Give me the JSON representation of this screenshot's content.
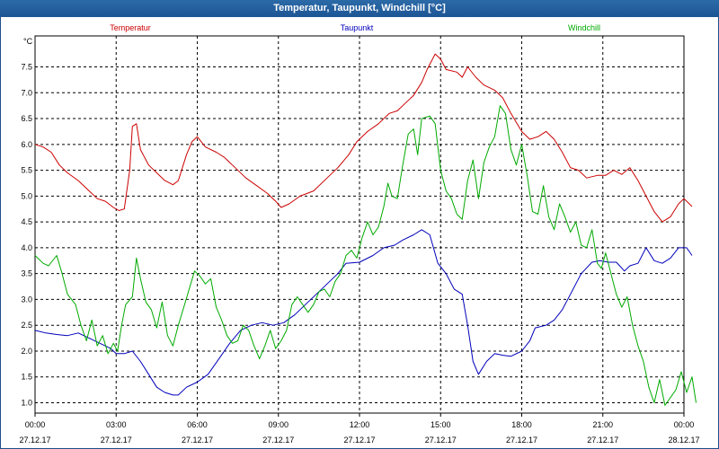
{
  "window": {
    "title": "Temperatur, Taupunkt, Windchill [°C]"
  },
  "colors": {
    "temperature": "#cc0000",
    "dewpoint": "#0000bb",
    "windchill": "#00aa00",
    "grid": "#000000",
    "titlebar": "#1d5594"
  },
  "chart_data": {
    "type": "line",
    "title": "Temperatur, Taupunkt, Windchill [°C]",
    "ylabel": "°C",
    "xlabel": "",
    "xlim": [
      0,
      24
    ],
    "ylim": [
      0.8,
      8.1
    ],
    "grid": true,
    "legend": "top",
    "x_ticks": [
      {
        "x": 0,
        "time": "00:00",
        "date": "27.12.17"
      },
      {
        "x": 3,
        "time": "03:00",
        "date": "27.12.17"
      },
      {
        "x": 6,
        "time": "06:00",
        "date": "27.12.17"
      },
      {
        "x": 9,
        "time": "09:00",
        "date": "27.12.17"
      },
      {
        "x": 12,
        "time": "12:00",
        "date": "27.12.17"
      },
      {
        "x": 15,
        "time": "15:00",
        "date": "27.12.17"
      },
      {
        "x": 18,
        "time": "18:00",
        "date": "27.12.17"
      },
      {
        "x": 21,
        "time": "21:00",
        "date": "27.12.17"
      },
      {
        "x": 24,
        "time": "00:00",
        "date": "28.12.17"
      }
    ],
    "y_ticks": [
      "1.0",
      "1.5",
      "2.0",
      "2.5",
      "3.0",
      "3.5",
      "4.0",
      "4.5",
      "5.0",
      "5.5",
      "6.0",
      "6.5",
      "7.0",
      "7.5"
    ],
    "series": [
      {
        "name": "Temperatur",
        "color": "#cc0000",
        "points": [
          [
            0,
            6.0
          ],
          [
            0.3,
            5.95
          ],
          [
            0.6,
            5.85
          ],
          [
            0.9,
            5.6
          ],
          [
            1.2,
            5.45
          ],
          [
            1.6,
            5.3
          ],
          [
            2.0,
            5.1
          ],
          [
            2.3,
            4.95
          ],
          [
            2.6,
            4.9
          ],
          [
            2.9,
            4.78
          ],
          [
            3.1,
            4.72
          ],
          [
            3.3,
            4.75
          ],
          [
            3.5,
            5.5
          ],
          [
            3.6,
            6.35
          ],
          [
            3.75,
            6.4
          ],
          [
            3.9,
            5.9
          ],
          [
            4.2,
            5.6
          ],
          [
            4.5,
            5.45
          ],
          [
            4.8,
            5.3
          ],
          [
            5.1,
            5.22
          ],
          [
            5.3,
            5.3
          ],
          [
            5.6,
            5.8
          ],
          [
            5.8,
            6.05
          ],
          [
            6.0,
            6.15
          ],
          [
            6.3,
            5.95
          ],
          [
            6.7,
            5.85
          ],
          [
            7.0,
            5.75
          ],
          [
            7.4,
            5.55
          ],
          [
            7.8,
            5.35
          ],
          [
            8.2,
            5.2
          ],
          [
            8.6,
            5.05
          ],
          [
            8.9,
            4.9
          ],
          [
            9.1,
            4.78
          ],
          [
            9.4,
            4.85
          ],
          [
            9.8,
            5.0
          ],
          [
            10.3,
            5.1
          ],
          [
            10.8,
            5.35
          ],
          [
            11.2,
            5.55
          ],
          [
            11.6,
            5.8
          ],
          [
            11.9,
            6.05
          ],
          [
            12.3,
            6.25
          ],
          [
            12.7,
            6.4
          ],
          [
            13.1,
            6.6
          ],
          [
            13.4,
            6.65
          ],
          [
            13.7,
            6.8
          ],
          [
            14.0,
            6.95
          ],
          [
            14.3,
            7.2
          ],
          [
            14.5,
            7.45
          ],
          [
            14.8,
            7.75
          ],
          [
            15.0,
            7.65
          ],
          [
            15.2,
            7.45
          ],
          [
            15.6,
            7.4
          ],
          [
            15.8,
            7.3
          ],
          [
            16.0,
            7.5
          ],
          [
            16.3,
            7.3
          ],
          [
            16.6,
            7.15
          ],
          [
            17.0,
            7.05
          ],
          [
            17.3,
            6.9
          ],
          [
            17.6,
            6.6
          ],
          [
            18.0,
            6.25
          ],
          [
            18.3,
            6.1
          ],
          [
            18.6,
            6.15
          ],
          [
            18.9,
            6.25
          ],
          [
            19.2,
            6.1
          ],
          [
            19.5,
            5.85
          ],
          [
            19.8,
            5.55
          ],
          [
            20.1,
            5.5
          ],
          [
            20.4,
            5.35
          ],
          [
            20.8,
            5.4
          ],
          [
            21.1,
            5.4
          ],
          [
            21.4,
            5.5
          ],
          [
            21.7,
            5.42
          ],
          [
            22.0,
            5.55
          ],
          [
            22.3,
            5.3
          ],
          [
            22.6,
            5.0
          ],
          [
            22.9,
            4.7
          ],
          [
            23.2,
            4.5
          ],
          [
            23.5,
            4.6
          ],
          [
            23.8,
            4.85
          ],
          [
            24.0,
            4.95
          ],
          [
            24.3,
            4.8
          ]
        ]
      },
      {
        "name": "Taupunkt",
        "color": "#0000bb",
        "points": [
          [
            0,
            2.4
          ],
          [
            0.4,
            2.35
          ],
          [
            0.8,
            2.32
          ],
          [
            1.2,
            2.3
          ],
          [
            1.6,
            2.35
          ],
          [
            2.0,
            2.25
          ],
          [
            2.4,
            2.15
          ],
          [
            2.8,
            2.05
          ],
          [
            3.0,
            1.95
          ],
          [
            3.3,
            1.95
          ],
          [
            3.6,
            2.0
          ],
          [
            3.9,
            1.8
          ],
          [
            4.2,
            1.55
          ],
          [
            4.5,
            1.3
          ],
          [
            4.8,
            1.2
          ],
          [
            5.1,
            1.15
          ],
          [
            5.3,
            1.15
          ],
          [
            5.6,
            1.3
          ],
          [
            6.0,
            1.4
          ],
          [
            6.4,
            1.55
          ],
          [
            6.8,
            1.85
          ],
          [
            7.2,
            2.15
          ],
          [
            7.6,
            2.4
          ],
          [
            8.0,
            2.5
          ],
          [
            8.4,
            2.55
          ],
          [
            8.8,
            2.5
          ],
          [
            9.2,
            2.55
          ],
          [
            9.6,
            2.7
          ],
          [
            10.0,
            2.9
          ],
          [
            10.4,
            3.1
          ],
          [
            10.8,
            3.3
          ],
          [
            11.2,
            3.5
          ],
          [
            11.5,
            3.7
          ],
          [
            12.0,
            3.72
          ],
          [
            12.5,
            3.85
          ],
          [
            12.9,
            4.0
          ],
          [
            13.3,
            4.05
          ],
          [
            13.6,
            4.15
          ],
          [
            14.0,
            4.25
          ],
          [
            14.3,
            4.35
          ],
          [
            14.6,
            4.25
          ],
          [
            14.9,
            3.7
          ],
          [
            15.2,
            3.5
          ],
          [
            15.5,
            3.2
          ],
          [
            15.8,
            3.1
          ],
          [
            16.0,
            2.5
          ],
          [
            16.2,
            1.8
          ],
          [
            16.4,
            1.55
          ],
          [
            16.7,
            1.8
          ],
          [
            17.0,
            1.95
          ],
          [
            17.3,
            1.92
          ],
          [
            17.6,
            1.9
          ],
          [
            18.0,
            2.0
          ],
          [
            18.3,
            2.2
          ],
          [
            18.5,
            2.45
          ],
          [
            18.9,
            2.5
          ],
          [
            19.2,
            2.6
          ],
          [
            19.5,
            2.8
          ],
          [
            19.8,
            3.1
          ],
          [
            20.2,
            3.5
          ],
          [
            20.6,
            3.72
          ],
          [
            20.9,
            3.75
          ],
          [
            21.2,
            3.72
          ],
          [
            21.5,
            3.72
          ],
          [
            21.8,
            3.55
          ],
          [
            22.0,
            3.65
          ],
          [
            22.3,
            3.7
          ],
          [
            22.6,
            4.0
          ],
          [
            22.9,
            3.75
          ],
          [
            23.2,
            3.7
          ],
          [
            23.5,
            3.8
          ],
          [
            23.8,
            4.0
          ],
          [
            24.1,
            4.0
          ],
          [
            24.3,
            3.85
          ]
        ]
      },
      {
        "name": "Windchill",
        "color": "#00aa00",
        "points": [
          [
            0,
            3.85
          ],
          [
            0.3,
            3.7
          ],
          [
            0.5,
            3.65
          ],
          [
            0.8,
            3.85
          ],
          [
            1.0,
            3.5
          ],
          [
            1.2,
            3.1
          ],
          [
            1.5,
            2.9
          ],
          [
            1.7,
            2.5
          ],
          [
            1.9,
            2.2
          ],
          [
            2.1,
            2.6
          ],
          [
            2.3,
            2.1
          ],
          [
            2.5,
            2.3
          ],
          [
            2.7,
            1.95
          ],
          [
            2.9,
            2.15
          ],
          [
            3.05,
            2.0
          ],
          [
            3.2,
            2.5
          ],
          [
            3.35,
            2.9
          ],
          [
            3.6,
            3.05
          ],
          [
            3.75,
            3.8
          ],
          [
            3.9,
            3.4
          ],
          [
            4.1,
            2.95
          ],
          [
            4.3,
            2.8
          ],
          [
            4.5,
            2.45
          ],
          [
            4.7,
            2.95
          ],
          [
            4.9,
            2.3
          ],
          [
            5.1,
            2.1
          ],
          [
            5.3,
            2.5
          ],
          [
            5.5,
            2.85
          ],
          [
            5.7,
            3.2
          ],
          [
            5.9,
            3.55
          ],
          [
            6.1,
            3.45
          ],
          [
            6.3,
            3.3
          ],
          [
            6.5,
            3.4
          ],
          [
            6.7,
            2.85
          ],
          [
            6.9,
            2.6
          ],
          [
            7.1,
            2.3
          ],
          [
            7.3,
            2.15
          ],
          [
            7.5,
            2.2
          ],
          [
            7.7,
            2.5
          ],
          [
            7.9,
            2.4
          ],
          [
            8.1,
            2.1
          ],
          [
            8.3,
            1.85
          ],
          [
            8.5,
            2.1
          ],
          [
            8.7,
            2.4
          ],
          [
            8.9,
            2.05
          ],
          [
            9.1,
            2.2
          ],
          [
            9.3,
            2.4
          ],
          [
            9.5,
            2.9
          ],
          [
            9.7,
            3.05
          ],
          [
            9.9,
            2.9
          ],
          [
            10.1,
            2.75
          ],
          [
            10.3,
            2.9
          ],
          [
            10.5,
            3.15
          ],
          [
            10.7,
            3.2
          ],
          [
            10.9,
            3.05
          ],
          [
            11.1,
            3.35
          ],
          [
            11.3,
            3.5
          ],
          [
            11.5,
            3.85
          ],
          [
            11.7,
            3.95
          ],
          [
            11.9,
            3.8
          ],
          [
            12.1,
            4.2
          ],
          [
            12.3,
            4.5
          ],
          [
            12.5,
            4.25
          ],
          [
            12.7,
            4.4
          ],
          [
            12.9,
            4.8
          ],
          [
            13.05,
            5.25
          ],
          [
            13.2,
            5.0
          ],
          [
            13.4,
            4.95
          ],
          [
            13.6,
            5.6
          ],
          [
            13.8,
            6.2
          ],
          [
            14.0,
            6.3
          ],
          [
            14.15,
            5.8
          ],
          [
            14.3,
            6.5
          ],
          [
            14.6,
            6.55
          ],
          [
            14.8,
            6.4
          ],
          [
            15.0,
            5.5
          ],
          [
            15.2,
            5.1
          ],
          [
            15.4,
            4.95
          ],
          [
            15.6,
            4.65
          ],
          [
            15.8,
            4.55
          ],
          [
            16.0,
            5.3
          ],
          [
            16.2,
            5.7
          ],
          [
            16.4,
            4.95
          ],
          [
            16.6,
            5.65
          ],
          [
            16.8,
            5.95
          ],
          [
            17.0,
            6.15
          ],
          [
            17.2,
            6.75
          ],
          [
            17.4,
            6.6
          ],
          [
            17.6,
            5.9
          ],
          [
            17.8,
            5.6
          ],
          [
            18.0,
            6.0
          ],
          [
            18.2,
            5.4
          ],
          [
            18.4,
            4.7
          ],
          [
            18.6,
            4.65
          ],
          [
            18.8,
            5.2
          ],
          [
            19.0,
            4.6
          ],
          [
            19.2,
            4.35
          ],
          [
            19.4,
            4.85
          ],
          [
            19.6,
            4.6
          ],
          [
            19.8,
            4.3
          ],
          [
            20.0,
            4.5
          ],
          [
            20.2,
            4.05
          ],
          [
            20.4,
            4.0
          ],
          [
            20.6,
            4.35
          ],
          [
            20.8,
            3.7
          ],
          [
            20.95,
            3.6
          ],
          [
            21.1,
            3.9
          ],
          [
            21.3,
            3.5
          ],
          [
            21.5,
            3.1
          ],
          [
            21.7,
            2.85
          ],
          [
            21.9,
            3.05
          ],
          [
            22.1,
            2.5
          ],
          [
            22.3,
            2.1
          ],
          [
            22.5,
            1.8
          ],
          [
            22.7,
            1.3
          ],
          [
            22.9,
            1.0
          ],
          [
            23.1,
            1.45
          ],
          [
            23.3,
            0.95
          ],
          [
            23.5,
            1.1
          ],
          [
            23.7,
            1.25
          ],
          [
            23.9,
            1.6
          ],
          [
            24.1,
            1.2
          ],
          [
            24.3,
            1.5
          ],
          [
            24.45,
            1.0
          ]
        ]
      }
    ]
  }
}
